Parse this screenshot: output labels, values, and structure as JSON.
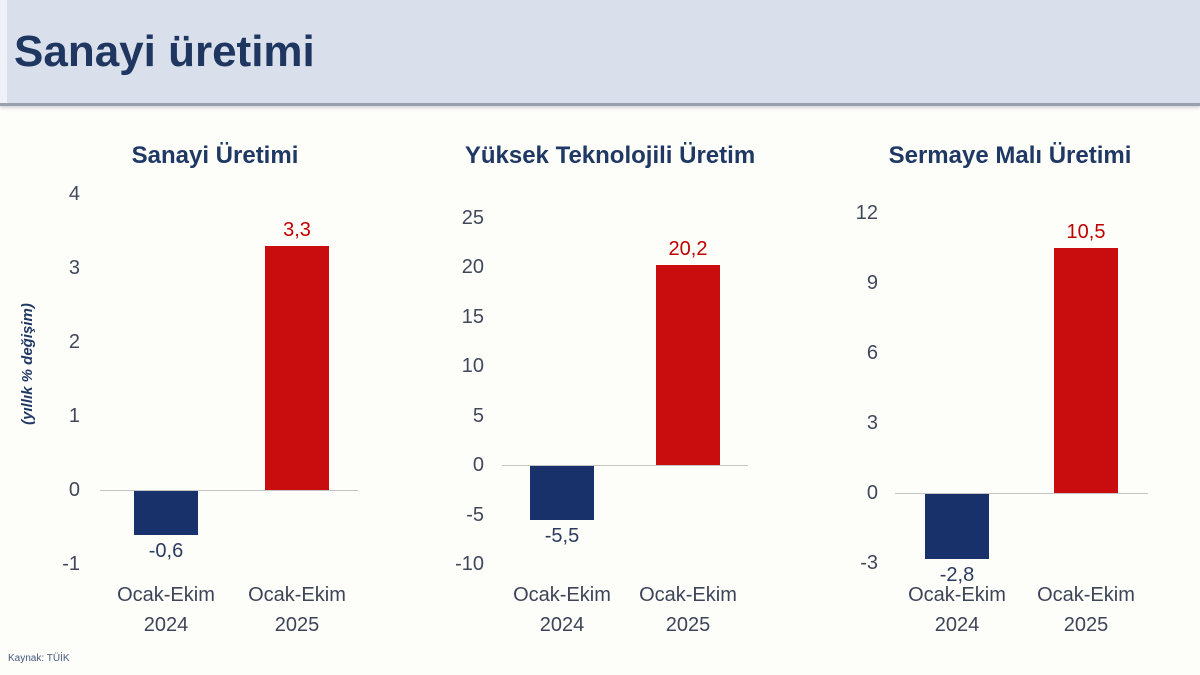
{
  "page": {
    "title": "Sanayi üretimi",
    "ylabel": "(yıllık % değişim)",
    "source": "Kaynak: TÜİK"
  },
  "colors": {
    "navy_bar": "#18316b",
    "red_bar": "#c90c0e",
    "navy_label": "#2c3a5e",
    "red_label": "#c00000",
    "axis_line": "#c4c4c4",
    "tick_text": "#41485a",
    "title_navy": "#1f3864",
    "header_bg": "#d9e0ec",
    "header_border": "#99a1b1"
  },
  "chart_data": [
    {
      "type": "bar",
      "title": "Sanayi Üretimi",
      "categories": [
        {
          "line1": "Ocak-Ekim",
          "line2": "2024"
        },
        {
          "line1": "Ocak-Ekim",
          "line2": "2025"
        }
      ],
      "values": [
        -0.6,
        3.3
      ],
      "value_labels": [
        "-0,6",
        "3,3"
      ],
      "bar_colors": [
        "navy_bar",
        "red_bar"
      ],
      "label_colors": [
        "navy_label",
        "red_label"
      ],
      "yticks": [
        4,
        3,
        2,
        1,
        0,
        -1
      ],
      "ylim": [
        -1,
        4
      ],
      "ylabel": "(yıllık % değişim)",
      "grid": false,
      "legend": "none"
    },
    {
      "type": "bar",
      "title": "Yüksek Teknolojili Üretim",
      "categories": [
        {
          "line1": "Ocak-Ekim",
          "line2": "2024"
        },
        {
          "line1": "Ocak-Ekim",
          "line2": "2025"
        }
      ],
      "values": [
        -5.5,
        20.2
      ],
      "value_labels": [
        "-5,5",
        "20,2"
      ],
      "bar_colors": [
        "navy_bar",
        "red_bar"
      ],
      "label_colors": [
        "navy_label",
        "red_label"
      ],
      "yticks": [
        25,
        20,
        15,
        10,
        5,
        0,
        -5,
        -10
      ],
      "ylim": [
        -10,
        25
      ],
      "grid": false,
      "legend": "none"
    },
    {
      "type": "bar",
      "title": "Sermaye Malı Üretimi",
      "categories": [
        {
          "line1": "Ocak-Ekim",
          "line2": "2024"
        },
        {
          "line1": "Ocak-Ekim",
          "line2": "2025"
        }
      ],
      "values": [
        -2.8,
        10.5
      ],
      "value_labels": [
        "-2,8",
        "10,5"
      ],
      "bar_colors": [
        "navy_bar",
        "red_bar"
      ],
      "label_colors": [
        "navy_label",
        "red_label"
      ],
      "yticks": [
        12,
        9,
        6,
        3,
        0,
        -3
      ],
      "ylim": [
        -3,
        12
      ],
      "grid": false,
      "legend": "none"
    }
  ]
}
